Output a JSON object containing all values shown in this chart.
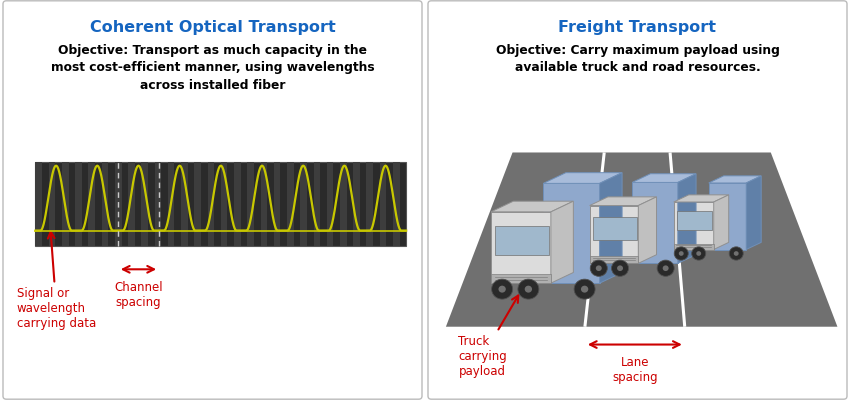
{
  "left_title": "Coherent Optical Transport",
  "right_title": "Freight Transport",
  "left_objective": "Objective: Transport as much capacity in the\nmost cost-efficient manner, using wavelengths\nacross installed fiber",
  "right_objective": "Objective: Carry maximum payload using\navailable truck and road resources.",
  "left_label1": "Signal or\nwavelength\ncarrying data",
  "left_label2": "Channel\nspacing",
  "right_label1": "Truck\ncarrying\npayload",
  "right_label2": "Lane\nspacing",
  "title_color": "#1565C0",
  "label_color": "#CC0000",
  "bg_color": "#FFFFFF",
  "fiber_bg": "#2a2a2a",
  "fiber_stripe": "#3d3d3d",
  "wave_color": "#C8C800",
  "road_color": "#707070",
  "road_dark": "#606060",
  "truck_body": "#DCDCDC",
  "truck_top": "#C8C8C8",
  "truck_cargo": "#8FA8CC",
  "truck_cargo_top": "#A8BCDA",
  "truck_cargo_side": "#6080A8",
  "truck_wheel": "#2a2a2a",
  "truck_window": "#A0B8CC",
  "truck_bumper": "#B0B0B0",
  "white": "#FFFFFF",
  "dashed_color": "#CCCCCC"
}
